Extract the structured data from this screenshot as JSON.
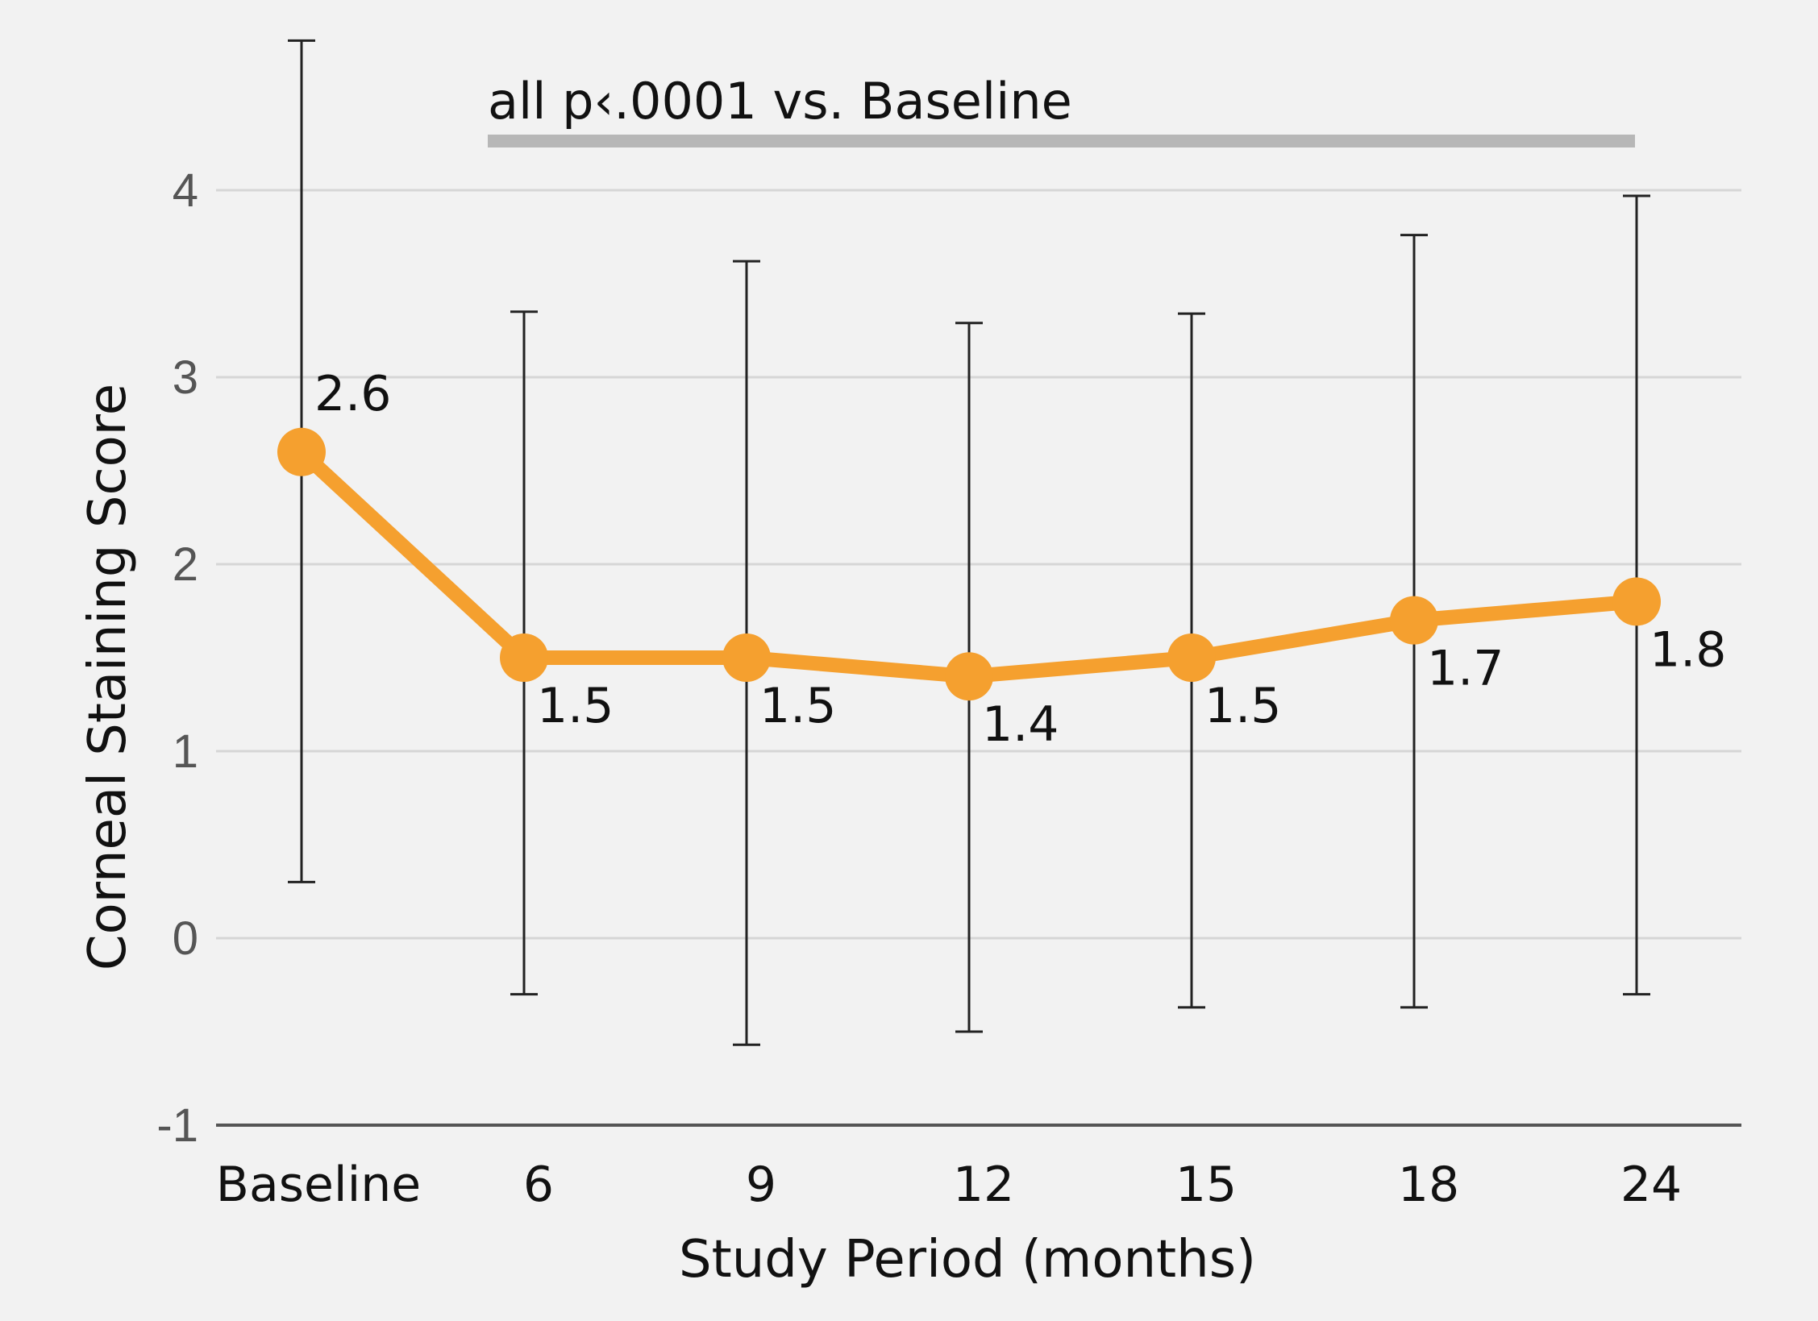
{
  "chart_data": {
    "type": "line",
    "categories": [
      "Baseline",
      "6",
      "9",
      "12",
      "15",
      "18",
      "24"
    ],
    "series": [
      {
        "values": [
          2.6,
          1.5,
          1.5,
          1.4,
          1.5,
          1.7,
          1.8
        ],
        "labels": [
          "2.6",
          "1.5",
          "1.5",
          "1.4",
          "1.5",
          "1.7",
          "1.8"
        ],
        "error_low": [
          0.3,
          -0.3,
          -0.57,
          -0.5,
          -0.37,
          -0.37,
          -0.3
        ],
        "error_high": [
          4.8,
          3.35,
          3.62,
          3.29,
          3.34,
          3.76,
          3.97
        ]
      }
    ],
    "xlabel": "Study Period (months)",
    "ylabel": "Corneal Staining Score",
    "ylim": [
      -1,
      4.9
    ],
    "yticks": [
      "-1",
      "0",
      "1",
      "2",
      "3",
      "4"
    ],
    "grid": true,
    "annotation": {
      "text": "all p‹.0001 vs. Baseline",
      "from_category": "6",
      "to_category": "24"
    },
    "colors": {
      "line": "#f5a02f",
      "marker": "#f5a02f",
      "error_bar": "#222222",
      "grid": "#d6d6d6",
      "annotation_bar": "#b7b7b7",
      "background": "#f2f2f2"
    }
  }
}
